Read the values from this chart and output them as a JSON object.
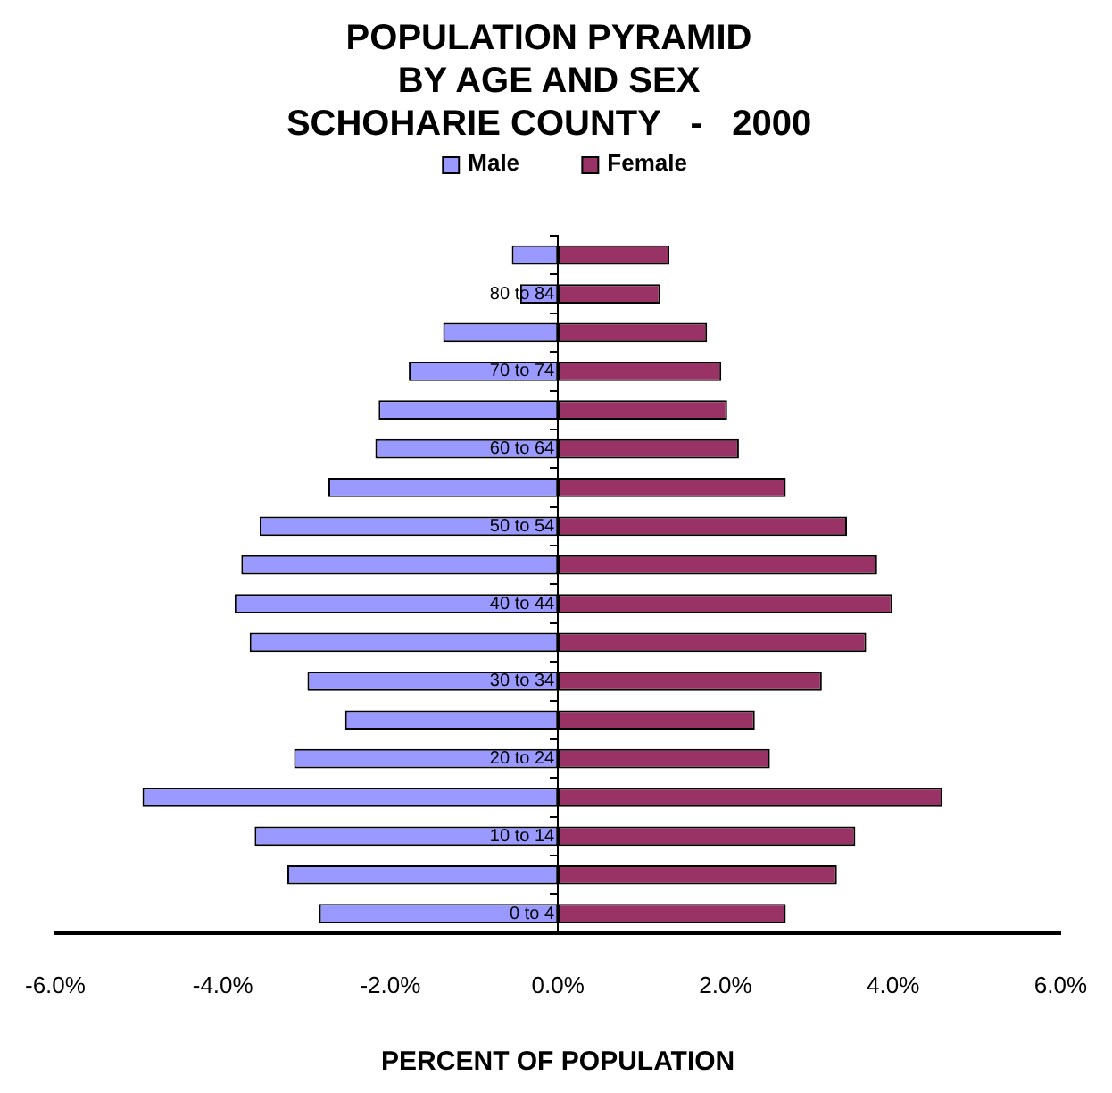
{
  "chart_data": {
    "type": "bar",
    "orientation": "horizontal",
    "stacked": true,
    "title": "POPULATION PYRAMID\nBY AGE AND SEX\nSCHOHARIE COUNTY   -   2000",
    "xlabel": "PERCENT OF POPULATION",
    "categories": [
      null,
      "80 to 84",
      null,
      "70 to 74",
      null,
      "60 to 64",
      null,
      "50 to 54",
      null,
      "40 to 44",
      null,
      "30 to 34",
      null,
      "20 to 24",
      null,
      "10 to 14",
      null,
      "0 to 4"
    ],
    "series": [
      {
        "name": "Male",
        "color": "#9999ff",
        "values": [
          -0.55,
          -0.45,
          -1.37,
          -1.78,
          -2.14,
          -2.18,
          -2.74,
          -3.56,
          -3.78,
          -3.86,
          -3.68,
          -2.99,
          -2.54,
          -3.15,
          -4.96,
          -3.62,
          -3.23,
          -2.85
        ]
      },
      {
        "name": "Female",
        "color": "#993366",
        "values": [
          1.33,
          1.22,
          1.78,
          1.95,
          2.02,
          2.16,
          2.72,
          3.45,
          3.81,
          3.99,
          3.68,
          3.15,
          2.35,
          2.53,
          4.59,
          3.55,
          3.33,
          2.72
        ]
      }
    ],
    "xlim": [
      -6,
      6
    ],
    "xticks": [
      {
        "value": -6,
        "label": "-6.0%"
      },
      {
        "value": -4,
        "label": "-4.0%"
      },
      {
        "value": -2,
        "label": "-2.0%"
      },
      {
        "value": 0,
        "label": "0.0%"
      },
      {
        "value": 2,
        "label": "2.0%"
      },
      {
        "value": 4,
        "label": "4.0%"
      },
      {
        "value": 6,
        "label": "6.0%"
      }
    ],
    "grid": false,
    "legend": "top"
  }
}
